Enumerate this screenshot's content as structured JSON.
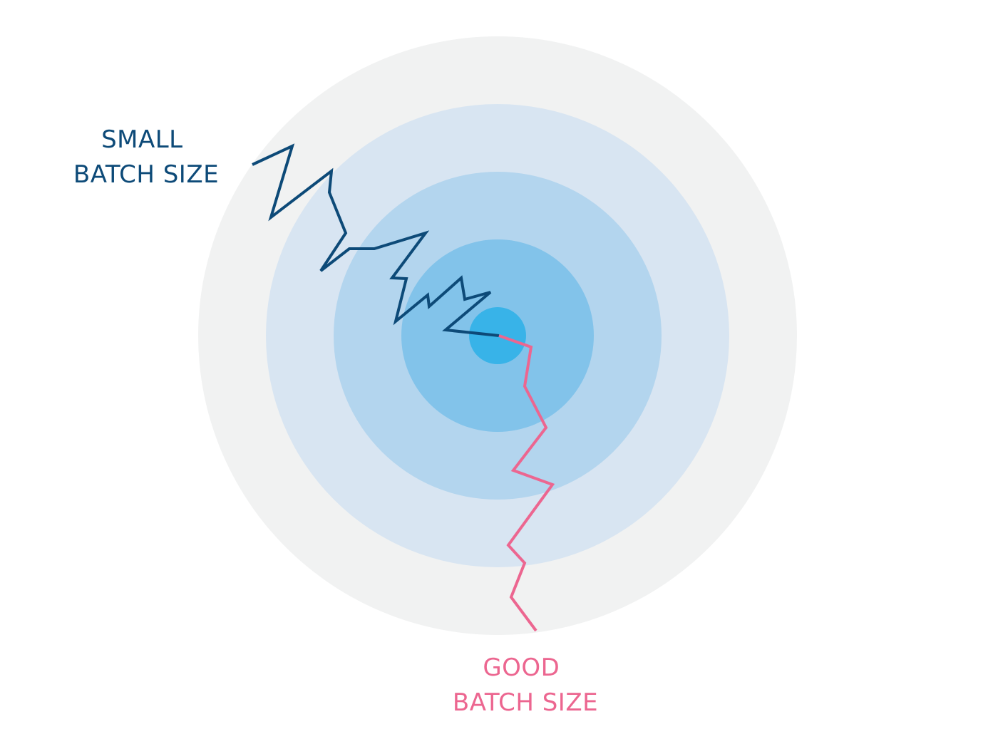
{
  "colors": {
    "background": "#ffffff",
    "rings": [
      "#f1f2f2",
      "#d8e5f2",
      "#b3d5ee",
      "#82c3ea",
      "#38b3e8"
    ],
    "small_path": "#0d4a78",
    "good_path": "#ec6690"
  },
  "labels": {
    "small": {
      "line1": "SMALL",
      "line2": "BATCH SIZE"
    },
    "good": {
      "line1": "GOOD",
      "line2": "BATCH SIZE"
    }
  }
}
